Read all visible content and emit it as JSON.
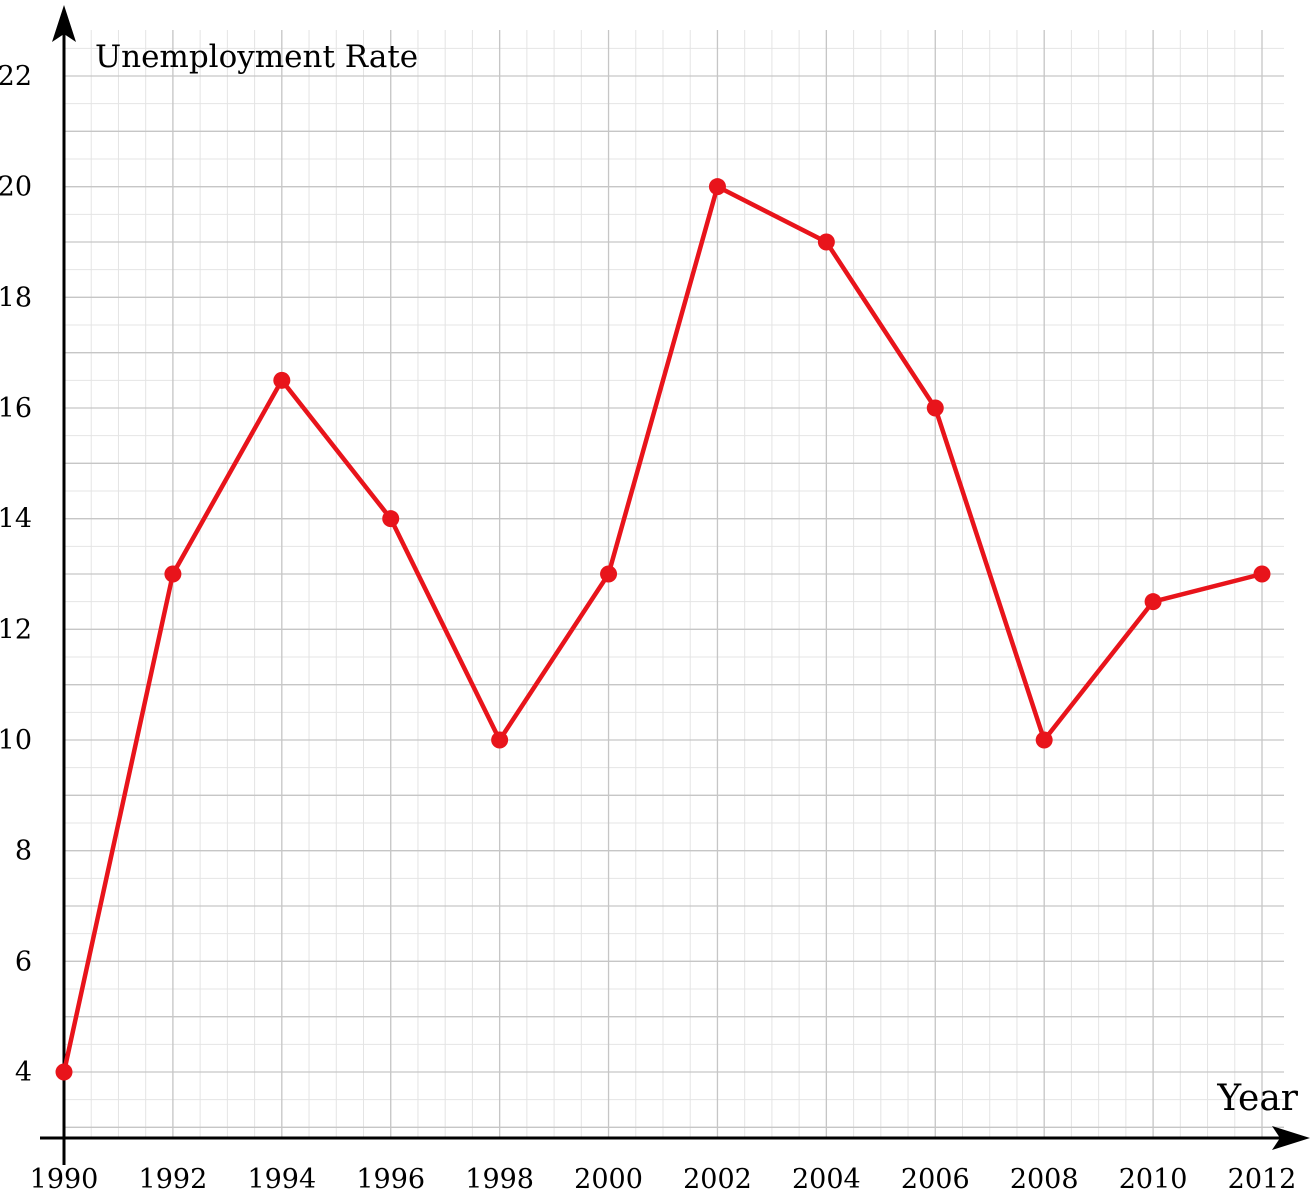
{
  "chart_data": {
    "type": "line",
    "title": "",
    "xlabel": "Year",
    "ylabel": "Unemployment Rate",
    "x": [
      1990,
      1992,
      1994,
      1996,
      1998,
      2000,
      2002,
      2004,
      2006,
      2008,
      2010,
      2012
    ],
    "series": [
      {
        "values": [
          4,
          13,
          16.5,
          14,
          10,
          13,
          20,
          19,
          16,
          10,
          12.5,
          13
        ],
        "color": "#e8141b"
      }
    ],
    "xlim": [
      1990,
      2012
    ],
    "ylim": [
      3,
      23
    ],
    "x_ticks": [
      "1990",
      "1992",
      "1994",
      "1996",
      "1998",
      "2000",
      "2002",
      "2004",
      "2006",
      "2008",
      "2010",
      "2012"
    ],
    "y_ticks": [
      "4",
      "6",
      "8",
      "10",
      "12",
      "14",
      "16",
      "18",
      "20",
      "22"
    ],
    "grid": true,
    "legend": "none",
    "marker": "circle"
  }
}
